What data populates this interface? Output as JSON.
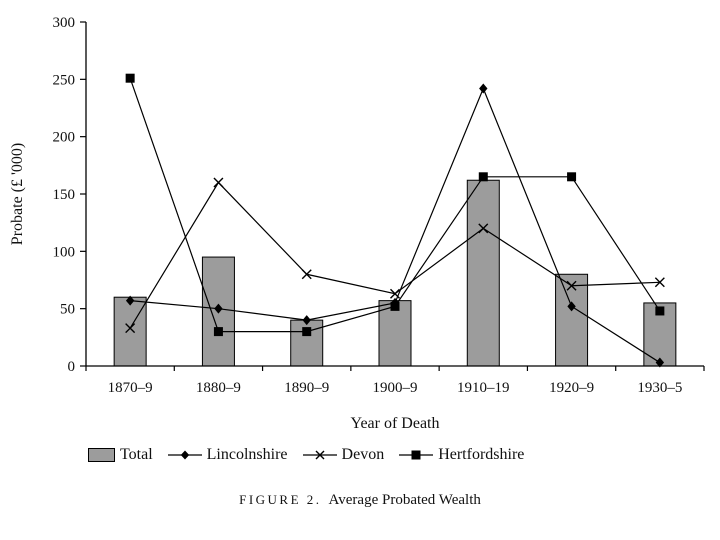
{
  "caption": {
    "label": "FIGURE 2.",
    "title": "Average Probated Wealth"
  },
  "chart_data": {
    "type": "bar+line",
    "title": "",
    "xlabel": "Year of Death",
    "ylabel": "Probate (£ '000)",
    "ylim": [
      0,
      300
    ],
    "ytick_step": 50,
    "grid": false,
    "legend_position": "bottom",
    "bar_color": "#9c9c9c",
    "line_color": "#000000",
    "categories": [
      "1870–9",
      "1880–9",
      "1890–9",
      "1900–9",
      "1910–19",
      "1920–9",
      "1930–5"
    ],
    "series": [
      {
        "name": "Total",
        "type": "bar",
        "marker": "rect",
        "values": [
          60,
          95,
          40,
          57,
          162,
          80,
          55
        ]
      },
      {
        "name": "Lincolnshire",
        "type": "line",
        "marker": "diamond",
        "values": [
          57,
          50,
          40,
          55,
          242,
          52,
          3
        ]
      },
      {
        "name": "Devon",
        "type": "line",
        "marker": "x",
        "values": [
          33,
          160,
          80,
          63,
          120,
          70,
          73
        ]
      },
      {
        "name": "Hertfordshire",
        "type": "line",
        "marker": "square",
        "values": [
          251,
          30,
          30,
          52,
          165,
          165,
          48
        ]
      }
    ]
  }
}
